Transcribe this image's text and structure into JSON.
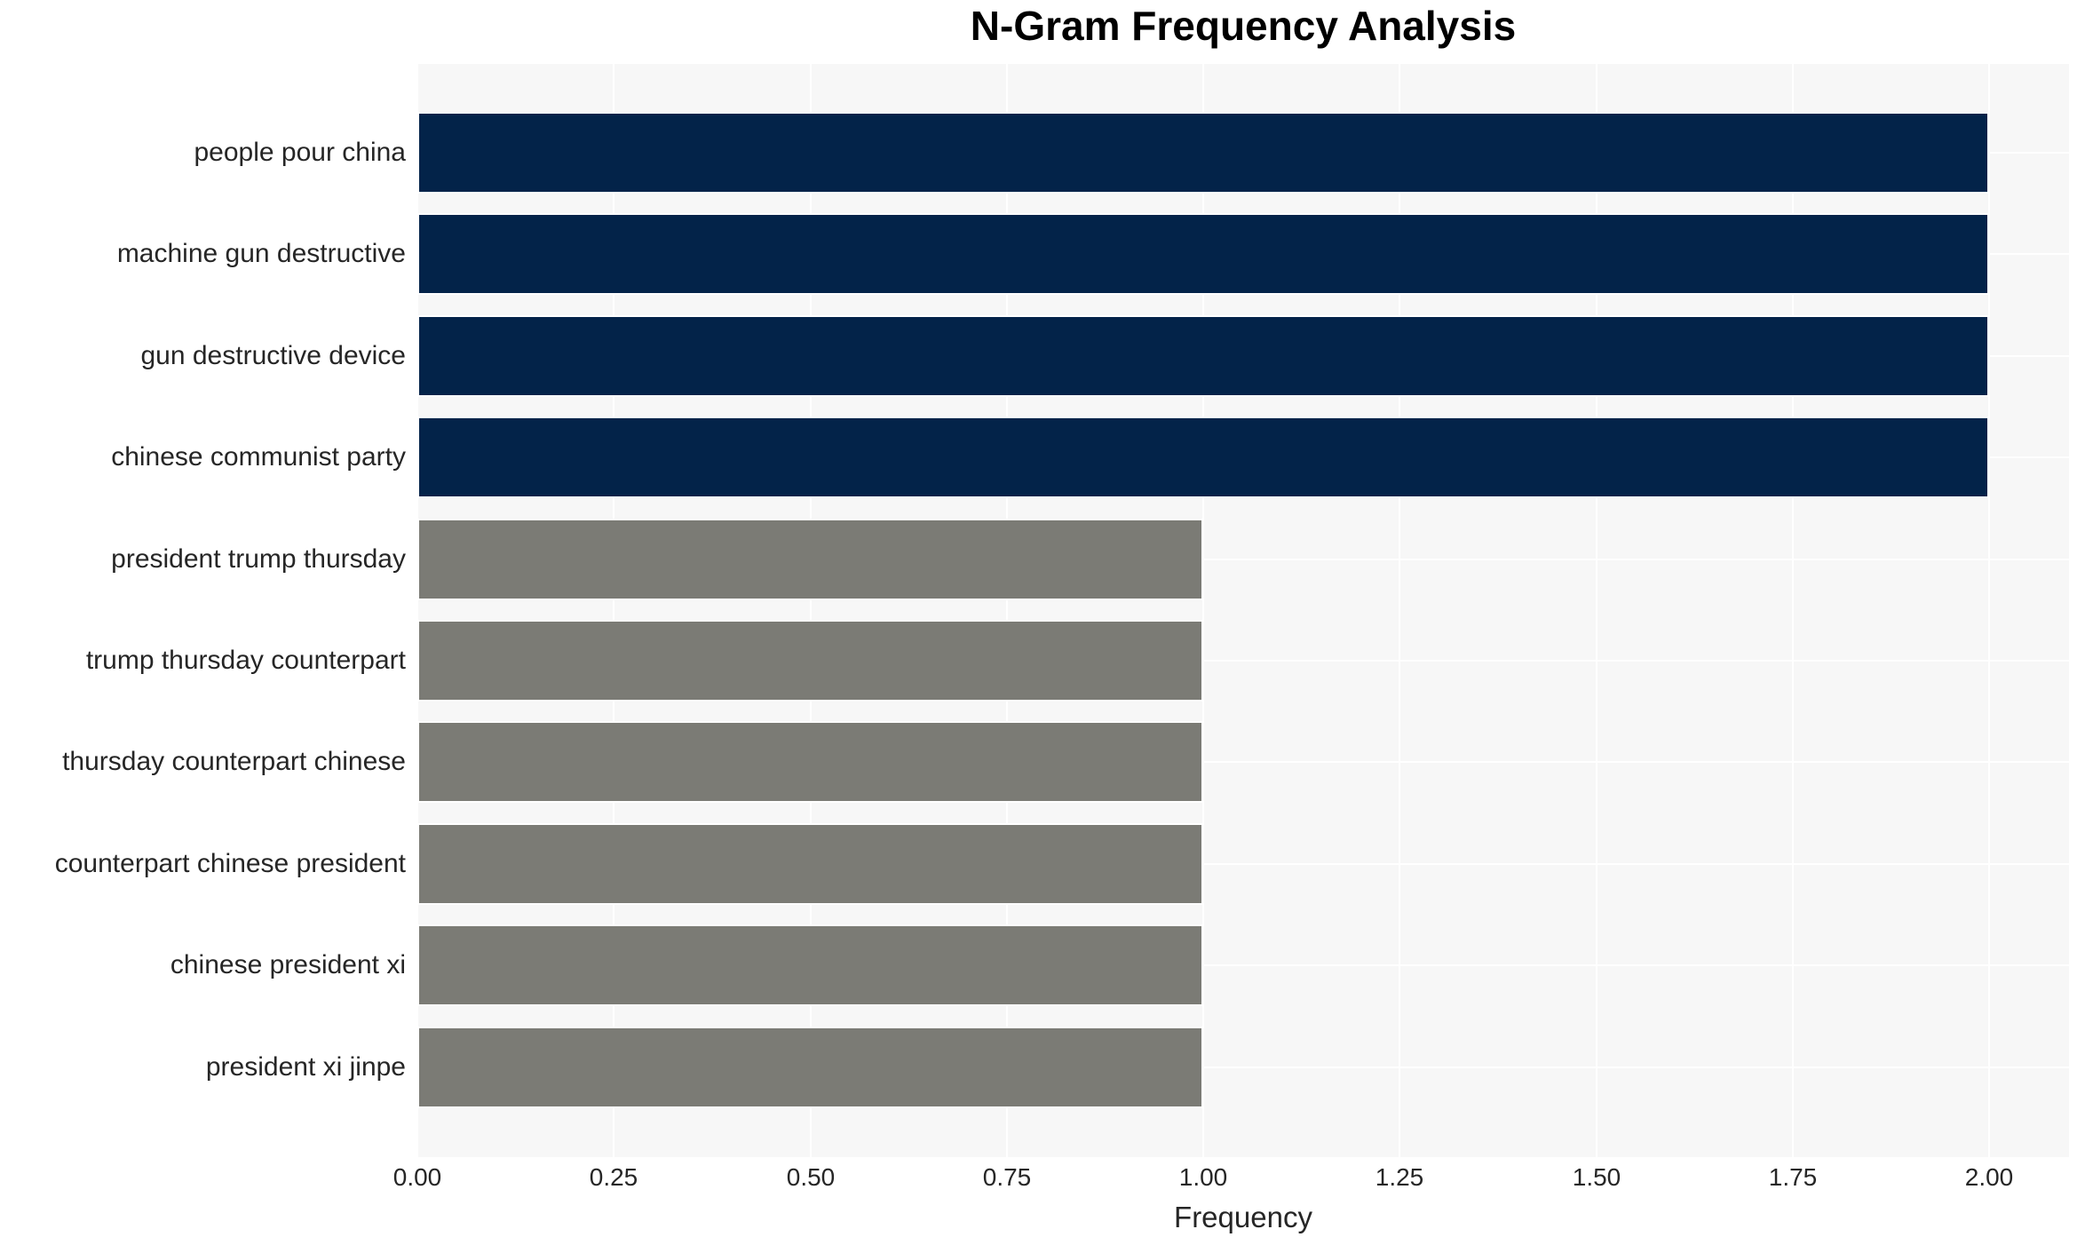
{
  "chart_data": {
    "type": "bar",
    "orientation": "horizontal",
    "title": "N-Gram Frequency Analysis",
    "xlabel": "Frequency",
    "ylabel": "",
    "categories": [
      "people pour china",
      "machine gun destructive",
      "gun destructive device",
      "chinese communist party",
      "president trump thursday",
      "trump thursday counterpart",
      "thursday counterpart chinese",
      "counterpart chinese president",
      "chinese president xi",
      "president xi jinpe"
    ],
    "values": [
      2.0,
      2.0,
      2.0,
      2.0,
      1.0,
      1.0,
      1.0,
      1.0,
      1.0,
      1.0
    ],
    "bar_colors": [
      "#032349",
      "#032349",
      "#032349",
      "#032349",
      "#7b7b75",
      "#7b7b75",
      "#7b7b75",
      "#7b7b75",
      "#7b7b75",
      "#7b7b75"
    ],
    "xtick_labels": [
      "0.00",
      "0.25",
      "0.50",
      "0.75",
      "1.00",
      "1.25",
      "1.50",
      "1.75",
      "2.00"
    ],
    "xtick_values": [
      0,
      0.25,
      0.5,
      0.75,
      1.0,
      1.25,
      1.5,
      1.75,
      2.0
    ],
    "xlim": [
      0,
      2.1
    ],
    "grid": true,
    "legend_position": "none",
    "plot_background": "#f7f7f7",
    "grid_color": "#ffffff",
    "title_color": "#000000",
    "tick_color": "#262626"
  }
}
